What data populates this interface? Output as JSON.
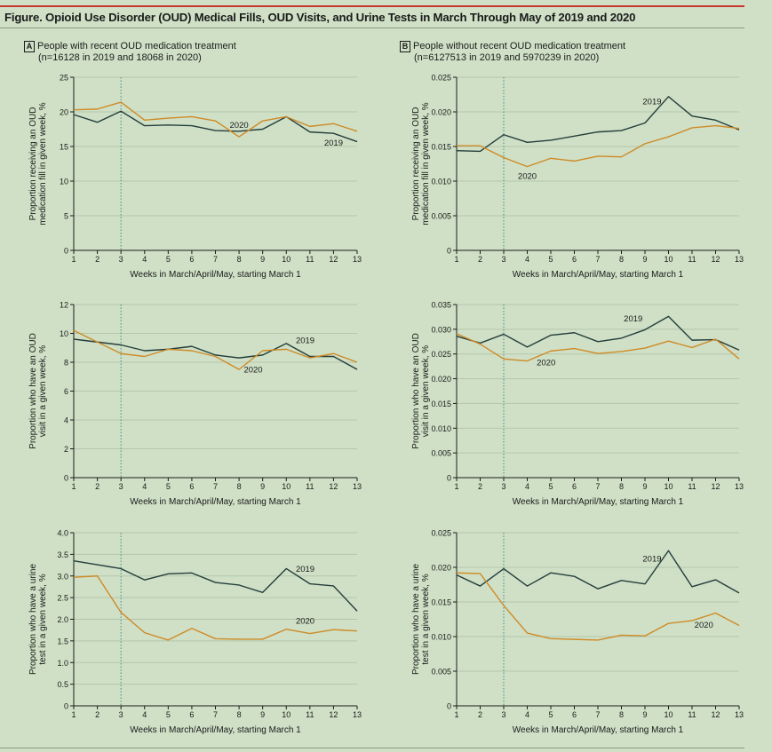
{
  "figure": {
    "title": "Figure. Opioid Use Disorder (OUD) Medical Fills, OUD Visits, and Urine Tests in March Through May of 2019 and 2020",
    "colors": {
      "y2019": "#243d3b",
      "y2020": "#cf8a26",
      "marker": "#4a8a86",
      "background": "#cfe0c6",
      "accent": "#c8362c"
    }
  },
  "panels": {
    "A": {
      "badge": "A",
      "heading": "People with recent OUD medication treatment",
      "subheading": "(n=16128 in 2019 and 18068 in 2020)"
    },
    "B": {
      "badge": "B",
      "heading": "People without recent OUD medication treatment",
      "subheading": "(n=6127513 in 2019 and 5970239 in 2020)"
    }
  },
  "chart_data": [
    {
      "type": "line",
      "panel": "A",
      "row": 1,
      "title": "",
      "xlabel": "Weeks in March/April/May, starting March 1",
      "ylabel": [
        "Proportion receiving an OUD",
        "medication fill in given week, %"
      ],
      "x": [
        1,
        2,
        3,
        4,
        5,
        6,
        7,
        8,
        9,
        10,
        11,
        12,
        13
      ],
      "ylim": [
        0,
        25
      ],
      "yticks": [
        0,
        5,
        10,
        15,
        20,
        25
      ],
      "ytick_labels": [
        "0",
        "5",
        "10",
        "15",
        "20",
        "25"
      ],
      "marker_week": 3,
      "series": [
        {
          "name": "2019",
          "label": "2019",
          "values": [
            19.6,
            18.5,
            20.1,
            18.0,
            18.1,
            18.0,
            17.3,
            17.2,
            17.5,
            19.3,
            17.1,
            16.9,
            15.7
          ]
        },
        {
          "name": "2020",
          "label": "2020",
          "values": [
            20.3,
            20.4,
            21.4,
            18.8,
            19.1,
            19.3,
            18.7,
            16.4,
            18.7,
            19.3,
            17.9,
            18.3,
            17.2
          ]
        }
      ]
    },
    {
      "type": "line",
      "panel": "B",
      "row": 1,
      "title": "",
      "xlabel": "Weeks in March/April/May, starting March 1",
      "ylabel": [
        "Proportion receiving an OUD",
        "medication fill in given week, %"
      ],
      "x": [
        1,
        2,
        3,
        4,
        5,
        6,
        7,
        8,
        9,
        10,
        11,
        12,
        13
      ],
      "ylim": [
        0,
        0.025
      ],
      "yticks": [
        0,
        0.005,
        0.01,
        0.015,
        0.02,
        0.025
      ],
      "ytick_labels": [
        "0",
        "0.005",
        "0.010",
        "0.015",
        "0.020",
        "0.025"
      ],
      "marker_week": 3,
      "series": [
        {
          "name": "2019",
          "label": "2019",
          "values": [
            0.0144,
            0.0143,
            0.0167,
            0.0156,
            0.0159,
            0.0165,
            0.0171,
            0.0173,
            0.0184,
            0.0222,
            0.0194,
            0.0188,
            0.0174
          ]
        },
        {
          "name": "2020",
          "label": "2020",
          "values": [
            0.0151,
            0.0151,
            0.0134,
            0.0121,
            0.0133,
            0.0129,
            0.0136,
            0.0135,
            0.0154,
            0.0164,
            0.0177,
            0.018,
            0.0176
          ]
        }
      ]
    },
    {
      "type": "line",
      "panel": "A",
      "row": 2,
      "title": "",
      "xlabel": "Weeks in March/April/May, starting March 1",
      "ylabel": [
        "Proportion who have an OUD",
        "visit in a given week, %"
      ],
      "x": [
        1,
        2,
        3,
        4,
        5,
        6,
        7,
        8,
        9,
        10,
        11,
        12,
        13
      ],
      "ylim": [
        0,
        12
      ],
      "yticks": [
        0,
        2,
        4,
        6,
        8,
        10,
        12
      ],
      "ytick_labels": [
        "0",
        "2",
        "4",
        "6",
        "8",
        "10",
        "12"
      ],
      "marker_week": 3,
      "series": [
        {
          "name": "2019",
          "label": "2019",
          "values": [
            9.6,
            9.4,
            9.2,
            8.8,
            8.9,
            9.1,
            8.5,
            8.3,
            8.5,
            9.3,
            8.4,
            8.4,
            7.5
          ]
        },
        {
          "name": "2020",
          "label": "2020",
          "values": [
            10.2,
            9.4,
            8.6,
            8.4,
            8.9,
            8.8,
            8.4,
            7.5,
            8.8,
            8.9,
            8.3,
            8.6,
            8.0
          ]
        }
      ]
    },
    {
      "type": "line",
      "panel": "B",
      "row": 2,
      "title": "",
      "xlabel": "Weeks in March/April/May, starting March 1",
      "ylabel": [
        "Proportion who have an OUD",
        "visit in a given week, %"
      ],
      "x": [
        1,
        2,
        3,
        4,
        5,
        6,
        7,
        8,
        9,
        10,
        11,
        12,
        13
      ],
      "ylim": [
        0,
        0.035
      ],
      "yticks": [
        0,
        0.005,
        0.01,
        0.015,
        0.02,
        0.025,
        0.03,
        0.035
      ],
      "ytick_labels": [
        "0",
        "0.005",
        "0.010",
        "0.015",
        "0.020",
        "0.025",
        "0.030",
        "0.035"
      ],
      "marker_week": 3,
      "series": [
        {
          "name": "2019",
          "label": "2019",
          "values": [
            0.0286,
            0.0272,
            0.029,
            0.0264,
            0.0288,
            0.0293,
            0.0275,
            0.0282,
            0.0299,
            0.0326,
            0.0278,
            0.0279,
            0.0258
          ]
        },
        {
          "name": "2020",
          "label": "2020",
          "values": [
            0.0291,
            0.027,
            0.024,
            0.0236,
            0.0256,
            0.0261,
            0.0251,
            0.0255,
            0.0262,
            0.0276,
            0.0263,
            0.028,
            0.024
          ]
        }
      ]
    },
    {
      "type": "line",
      "panel": "A",
      "row": 3,
      "title": "",
      "xlabel": "Weeks in March/April/May, starting March 1",
      "ylabel": [
        "Proportion who have a urine",
        "test in a given week, %"
      ],
      "x": [
        1,
        2,
        3,
        4,
        5,
        6,
        7,
        8,
        9,
        10,
        11,
        12,
        13
      ],
      "ylim": [
        0,
        4.0
      ],
      "yticks": [
        0,
        0.5,
        1.0,
        1.5,
        2.0,
        2.5,
        3.0,
        3.5,
        4.0
      ],
      "ytick_labels": [
        "0",
        "0.5",
        "1.0",
        "1.5",
        "2.0",
        "2.5",
        "3.0",
        "3.5",
        "4.0"
      ],
      "marker_week": 3,
      "series": [
        {
          "name": "2019",
          "label": "2019",
          "values": [
            3.35,
            3.26,
            3.17,
            2.91,
            3.05,
            3.07,
            2.85,
            2.79,
            2.62,
            3.17,
            2.82,
            2.77,
            2.19
          ]
        },
        {
          "name": "2020",
          "label": "2020",
          "values": [
            2.97,
            3.0,
            2.16,
            1.69,
            1.52,
            1.79,
            1.55,
            1.54,
            1.54,
            1.77,
            1.67,
            1.76,
            1.73
          ]
        }
      ]
    },
    {
      "type": "line",
      "panel": "B",
      "row": 3,
      "title": "",
      "xlabel": "Weeks in March/April/May, starting March 1",
      "ylabel": [
        "Proportion who have a urine",
        "test in a given week, %"
      ],
      "x": [
        1,
        2,
        3,
        4,
        5,
        6,
        7,
        8,
        9,
        10,
        11,
        12,
        13
      ],
      "ylim": [
        0,
        0.025
      ],
      "yticks": [
        0,
        0.005,
        0.01,
        0.015,
        0.02,
        0.025
      ],
      "ytick_labels": [
        "0",
        "0.005",
        "0.010",
        "0.015",
        "0.020",
        "0.025"
      ],
      "marker_week": 3,
      "series": [
        {
          "name": "2019",
          "label": "2019",
          "values": [
            0.0189,
            0.0173,
            0.0198,
            0.0173,
            0.0192,
            0.0187,
            0.0169,
            0.0181,
            0.0176,
            0.0224,
            0.0172,
            0.0182,
            0.0163
          ]
        },
        {
          "name": "2020",
          "label": "2020",
          "values": [
            0.0192,
            0.0191,
            0.0145,
            0.0105,
            0.0097,
            0.0096,
            0.0095,
            0.0102,
            0.0101,
            0.0119,
            0.0123,
            0.0134,
            0.0116
          ]
        }
      ]
    }
  ]
}
